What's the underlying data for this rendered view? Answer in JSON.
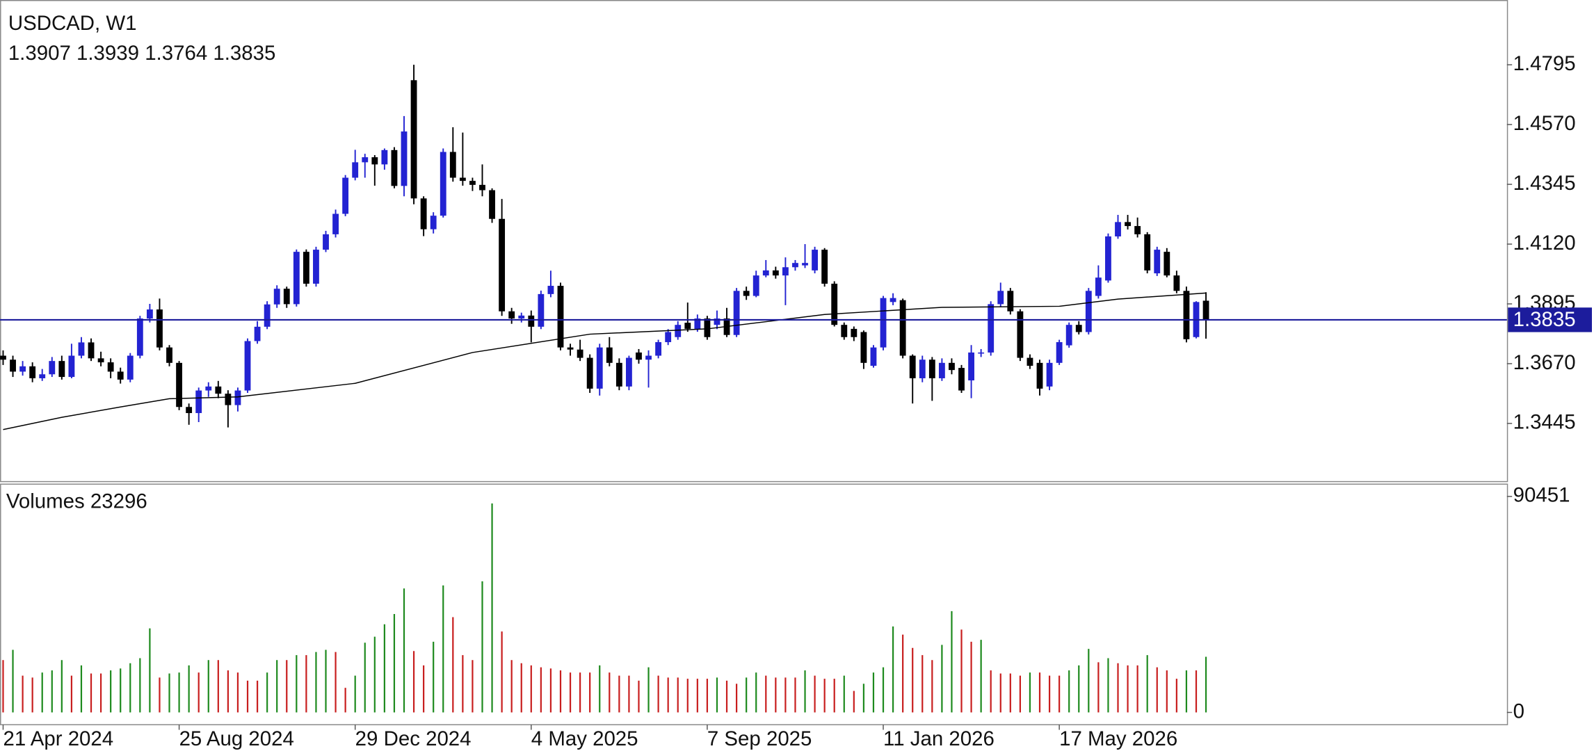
{
  "chart_data": {
    "type": "candlestick",
    "title": "USDCAD, W1",
    "categories": [
      "21 Apr 2024",
      null,
      null,
      null,
      null,
      null,
      null,
      null,
      null,
      null,
      null,
      null,
      null,
      null,
      null,
      null,
      null,
      null,
      "25 Aug 2024",
      null,
      null,
      null,
      null,
      null,
      null,
      null,
      null,
      null,
      null,
      null,
      null,
      null,
      null,
      null,
      null,
      null,
      "29 Dec 2024",
      null,
      null,
      null,
      null,
      null,
      null,
      null,
      null,
      null,
      null,
      null,
      null,
      null,
      null,
      null,
      null,
      null,
      "4 May 2025",
      null,
      null,
      null,
      null,
      null,
      null,
      null,
      null,
      null,
      null,
      null,
      null,
      null,
      null,
      null,
      null,
      null,
      "7 Sep 2025",
      null,
      null,
      null,
      null,
      null,
      null,
      null,
      null,
      null,
      null,
      null,
      null,
      null,
      null,
      null,
      null,
      null,
      "11 Jan 2026",
      null,
      null,
      null,
      null,
      null,
      null,
      null,
      null,
      null,
      null,
      null,
      null,
      null,
      null,
      null,
      null,
      null,
      "17 May 2026",
      null,
      null,
      null,
      null,
      null,
      null,
      null,
      null,
      null,
      null,
      null,
      null,
      null,
      null,
      null
    ],
    "open": [
      1.37,
      1.3685,
      1.364,
      1.366,
      1.3615,
      1.363,
      1.368,
      1.362,
      1.37,
      1.375,
      1.369,
      1.3675,
      1.364,
      1.361,
      1.37,
      1.384,
      1.3874,
      1.3731,
      1.3673,
      1.3507,
      1.3484,
      1.3569,
      1.3584,
      1.3557,
      1.3514,
      1.3569,
      1.3755,
      1.3809,
      1.3893,
      1.3952,
      1.3894,
      1.4091,
      1.3971,
      1.4099,
      1.4157,
      1.4234,
      1.437,
      1.4428,
      1.4447,
      1.442,
      1.4474,
      1.4339,
      1.4737,
      1.4292,
      1.4176,
      1.4227,
      1.4467,
      1.437,
      1.4358,
      1.4343,
      1.4323,
      1.4215,
      1.3867,
      1.384,
      1.3851,
      1.3809,
      1.3932,
      1.3963,
      1.3731,
      1.3723,
      1.3692,
      1.3576,
      1.3731,
      1.3673,
      1.3584,
      1.3712,
      1.3685,
      1.37,
      1.3751,
      1.377,
      1.3824,
      1.3801,
      1.384,
      1.3816,
      1.384,
      1.3778,
      1.3944,
      1.3925,
      1.4002,
      1.4021,
      1.4002,
      1.4033,
      1.404,
      1.4021,
      1.4099,
      1.3971,
      1.3816,
      1.3801,
      1.3789,
      1.3662,
      1.3731,
      1.3902,
      1.3909,
      1.37,
      1.3615,
      1.3685,
      1.3615,
      1.3673,
      1.3654,
      1.3607,
      1.3708,
      1.3712,
      1.3894,
      1.3944,
      1.3867,
      1.3692,
      1.3673,
      1.3584,
      1.3673,
      1.3739,
      1.3816,
      1.3789,
      1.3925,
      1.3983,
      1.4149,
      1.4203,
      1.4188,
      1.4157,
      1.401,
      1.4091,
      1.4002,
      1.3944,
      1.377,
      1.3907
    ],
    "high": [
      1.372,
      1.37,
      1.368,
      1.3675,
      1.365,
      1.3695,
      1.37,
      1.3745,
      1.377,
      1.3765,
      1.3715,
      1.369,
      1.3655,
      1.371,
      1.385,
      1.3895,
      1.3915,
      1.374,
      1.368,
      1.352,
      1.358,
      1.36,
      1.3605,
      1.357,
      1.358,
      1.3765,
      1.383,
      1.3905,
      1.3965,
      1.396,
      1.41,
      1.41,
      1.411,
      1.417,
      1.425,
      1.438,
      1.4475,
      1.446,
      1.4455,
      1.448,
      1.4485,
      1.4602,
      1.4795,
      1.43,
      1.424,
      1.448,
      1.456,
      1.454,
      1.437,
      1.442,
      1.433,
      1.429,
      1.388,
      1.3862,
      1.387,
      1.3945,
      1.402,
      1.3975,
      1.3745,
      1.376,
      1.3705,
      1.3745,
      1.377,
      1.369,
      1.37,
      1.3725,
      1.372,
      1.376,
      1.38,
      1.383,
      1.39,
      1.3855,
      1.385,
      1.387,
      1.388,
      1.3955,
      1.396,
      1.402,
      1.406,
      1.4035,
      1.407,
      1.406,
      1.412,
      1.411,
      1.4105,
      1.398,
      1.3825,
      1.381,
      1.3795,
      1.374,
      1.3925,
      1.3935,
      1.3915,
      1.3705,
      1.37,
      1.3695,
      1.369,
      1.369,
      1.3665,
      1.374,
      1.3725,
      1.3905,
      1.3975,
      1.3955,
      1.3875,
      1.3705,
      1.3685,
      1.3685,
      1.376,
      1.3825,
      1.383,
      1.3955,
      1.404,
      1.416,
      1.423,
      1.423,
      1.422,
      1.4165,
      1.411,
      1.4105,
      1.402,
      1.396,
      1.3905,
      1.3939
    ],
    "low": [
      1.3665,
      1.362,
      1.3625,
      1.36,
      1.3605,
      1.362,
      1.361,
      1.3615,
      1.369,
      1.368,
      1.366,
      1.3615,
      1.3595,
      1.36,
      1.369,
      1.3825,
      1.372,
      1.366,
      1.3495,
      1.344,
      1.345,
      1.3545,
      1.354,
      1.343,
      1.349,
      1.356,
      1.3745,
      1.38,
      1.388,
      1.388,
      1.3885,
      1.396,
      1.396,
      1.409,
      1.4145,
      1.4225,
      1.436,
      1.437,
      1.434,
      1.44,
      1.433,
      1.43,
      1.427,
      1.415,
      1.416,
      1.422,
      1.4355,
      1.434,
      1.432,
      1.43,
      1.42,
      1.385,
      1.382,
      1.3825,
      1.375,
      1.38,
      1.392,
      1.372,
      1.37,
      1.368,
      1.356,
      1.355,
      1.366,
      1.357,
      1.357,
      1.367,
      1.358,
      1.369,
      1.374,
      1.376,
      1.379,
      1.379,
      1.376,
      1.38,
      1.377,
      1.377,
      1.391,
      1.392,
      1.3995,
      1.399,
      1.389,
      1.402,
      1.403,
      1.401,
      1.396,
      1.381,
      1.376,
      1.3755,
      1.365,
      1.3655,
      1.372,
      1.389,
      1.369,
      1.352,
      1.36,
      1.353,
      1.3605,
      1.363,
      1.356,
      1.354,
      1.3695,
      1.37,
      1.3885,
      1.3855,
      1.368,
      1.365,
      1.355,
      1.357,
      1.3665,
      1.373,
      1.378,
      1.378,
      1.3915,
      1.3975,
      1.414,
      1.4175,
      1.4145,
      1.401,
      1.4,
      1.3995,
      1.3935,
      1.375,
      1.3765,
      1.3764
    ],
    "close": [
      1.3685,
      1.364,
      1.366,
      1.3615,
      1.363,
      1.368,
      1.362,
      1.37,
      1.375,
      1.369,
      1.3675,
      1.364,
      1.361,
      1.37,
      1.384,
      1.3874,
      1.3731,
      1.3673,
      1.3507,
      1.3484,
      1.3569,
      1.3584,
      1.3557,
      1.3514,
      1.3569,
      1.3755,
      1.3809,
      1.3893,
      1.3952,
      1.3894,
      1.4091,
      1.3971,
      1.4099,
      1.4157,
      1.4234,
      1.437,
      1.4428,
      1.4447,
      1.442,
      1.4474,
      1.4339,
      1.4544,
      1.4292,
      1.4176,
      1.4227,
      1.4467,
      1.437,
      1.4358,
      1.4343,
      1.4323,
      1.4215,
      1.3867,
      1.384,
      1.3851,
      1.3809,
      1.3932,
      1.3963,
      1.3731,
      1.3723,
      1.3692,
      1.3576,
      1.3731,
      1.3673,
      1.3584,
      1.3692,
      1.3685,
      1.37,
      1.3751,
      1.3789,
      1.3816,
      1.3801,
      1.384,
      1.377,
      1.384,
      1.3778,
      1.3944,
      1.3925,
      1.4002,
      1.4021,
      1.4002,
      1.4033,
      1.4049,
      1.4049,
      1.4099,
      1.3971,
      1.3816,
      1.377,
      1.377,
      1.3673,
      1.3731,
      1.3917,
      1.3917,
      1.37,
      1.3615,
      1.3685,
      1.3615,
      1.3673,
      1.3646,
      1.3569,
      1.3712,
      1.3712,
      1.3894,
      1.3944,
      1.3867,
      1.3692,
      1.3662,
      1.3576,
      1.3673,
      1.3751,
      1.3816,
      1.3789,
      1.3944,
      1.3994,
      1.4149,
      1.4203,
      1.4188,
      1.4157,
      1.4021,
      1.4099,
      1.4002,
      1.3944,
      1.3762,
      1.3902,
      1.3835
    ],
    "bull_color": "#2323d2",
    "bear_color": "#000000",
    "price_line_color": "#1c1c9c",
    "ylim": [
      1.3228,
      1.5035
    ],
    "yticks": [
      1.3445,
      {
        "value": 1.367,
        "label": "1.3670"
      },
      1.3895,
      {
        "value": 1.412,
        "label": "1.4120"
      },
      1.4345,
      {
        "value": 1.457,
        "label": "1.4570"
      },
      1.4795
    ],
    "ma": {
      "color": "#000000",
      "index": [
        0,
        6,
        12,
        17,
        24,
        36,
        48,
        60,
        72,
        84,
        96,
        108,
        114,
        123
      ],
      "values": [
        1.3422,
        1.3468,
        1.3507,
        1.3538,
        1.3545,
        1.3596,
        1.3712,
        1.3781,
        1.3801,
        1.3855,
        1.3882,
        1.3886,
        1.3913,
        1.3936
      ]
    },
    "volume_panel": {
      "title": "Volumes",
      "values": [
        21900,
        26200,
        15400,
        14600,
        16700,
        17600,
        21900,
        15400,
        19700,
        16300,
        16300,
        17600,
        18400,
        20600,
        22700,
        35200,
        14600,
        16300,
        16700,
        19700,
        16700,
        21900,
        21900,
        17600,
        16700,
        13300,
        13300,
        16700,
        21900,
        21900,
        24000,
        24000,
        25300,
        26200,
        25300,
        10300,
        15400,
        29200,
        31700,
        36900,
        41200,
        51900,
        25700,
        19700,
        29600,
        53200,
        39900,
        24000,
        21900,
        54900,
        87500,
        33900,
        21900,
        20600,
        19700,
        18900,
        18400,
        17600,
        16700,
        16700,
        16700,
        19700,
        16700,
        15400,
        15400,
        13300,
        18900,
        15400,
        14600,
        14600,
        14100,
        14100,
        14100,
        14600,
        13300,
        12000,
        14600,
        16700,
        15400,
        14600,
        14600,
        14600,
        17600,
        15400,
        14100,
        14100,
        15400,
        9000,
        12000,
        16700,
        18900,
        36000,
        32600,
        27000,
        24000,
        21900,
        28300,
        42400,
        34700,
        29600,
        30400,
        17600,
        16300,
        16300,
        15400,
        16700,
        16700,
        15400,
        15400,
        17600,
        19700,
        26600,
        21000,
        22700,
        20600,
        19700,
        19700,
        24000,
        18900,
        17600,
        14100,
        17600,
        17600,
        23296
      ],
      "ylim": [
        0,
        90451
      ],
      "yticks": [
        0,
        90451
      ],
      "up_color": "#1e8a1e",
      "down_color": "#c81e1e"
    }
  }
}
